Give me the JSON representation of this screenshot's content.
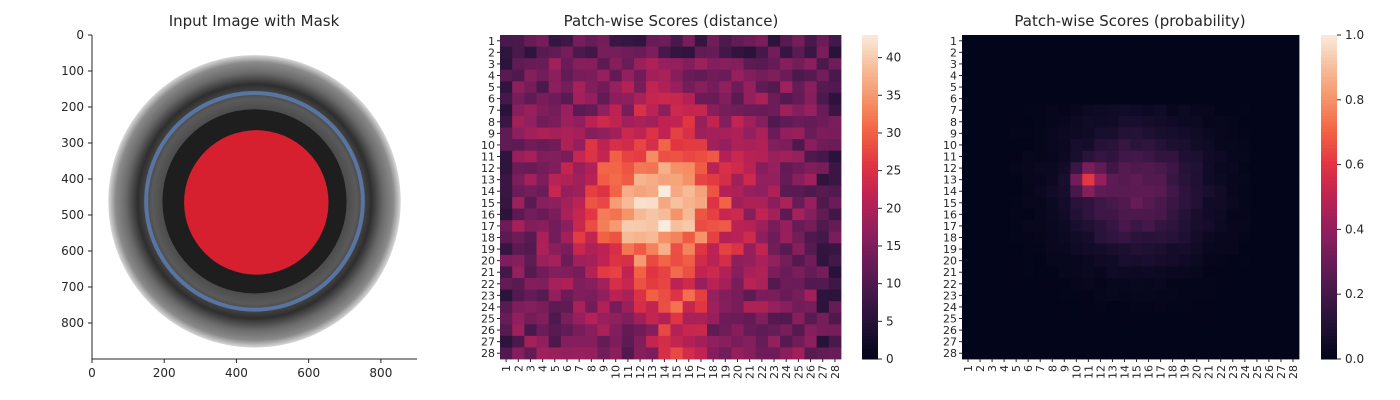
{
  "chart_data": [
    {
      "type": "image",
      "title": "Input Image with Mask",
      "xlim": [
        0,
        900
      ],
      "ylim": [
        900,
        0
      ],
      "xticks": [
        0,
        200,
        400,
        600,
        800
      ],
      "yticks": [
        0,
        100,
        200,
        300,
        400,
        500,
        600,
        700,
        800
      ],
      "mask_center": [
        455,
        465
      ],
      "mask_radius": 200,
      "mask_color": "#d6202f",
      "ring_center": [
        450,
        462
      ],
      "ring_outer_radius": 405
    },
    {
      "type": "heatmap",
      "title": "Patch-wise Scores (distance)",
      "grid_size": 28,
      "tick_labels": [
        "1",
        "2",
        "3",
        "4",
        "5",
        "6",
        "7",
        "8",
        "9",
        "10",
        "11",
        "12",
        "13",
        "14",
        "15",
        "16",
        "17",
        "18",
        "19",
        "20",
        "21",
        "22",
        "23",
        "24",
        "25",
        "26",
        "27",
        "28"
      ],
      "colorbar_ticks": [
        0,
        5,
        10,
        15,
        20,
        25,
        30,
        35,
        40
      ],
      "vmin": 0,
      "vmax": 43,
      "colormap": "rocket",
      "hotspot": {
        "center_col": 13.5,
        "center_row": 15.5,
        "peak": 42
      }
    },
    {
      "type": "heatmap",
      "title": "Patch-wise Scores (probability)",
      "grid_size": 28,
      "tick_labels": [
        "1",
        "2",
        "3",
        "4",
        "5",
        "6",
        "7",
        "8",
        "9",
        "10",
        "11",
        "12",
        "13",
        "14",
        "15",
        "16",
        "17",
        "18",
        "19",
        "20",
        "21",
        "22",
        "23",
        "24",
        "25",
        "26",
        "27",
        "28"
      ],
      "colorbar_ticks": [
        "0.0",
        "0.2",
        "0.4",
        "0.6",
        "0.8",
        "1.0"
      ],
      "vmin": 0,
      "vmax": 1,
      "colormap": "rocket",
      "hotspot": {
        "col": 11,
        "row": 13,
        "peak": 0.72
      }
    }
  ]
}
